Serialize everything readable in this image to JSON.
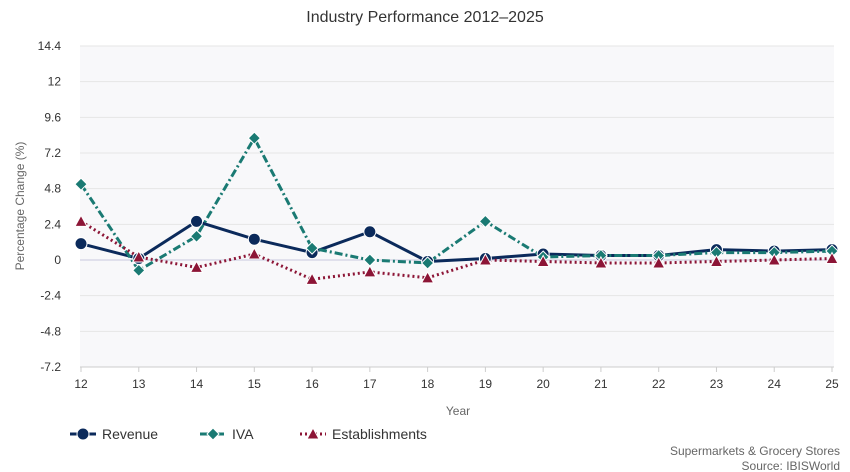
{
  "chart_data": {
    "type": "line",
    "title": "Industry Performance 2012–2025",
    "xlabel": "Year",
    "ylabel": "Percentage Change (%)",
    "x": [
      "12",
      "13",
      "14",
      "15",
      "16",
      "17",
      "18",
      "19",
      "20",
      "21",
      "22",
      "23",
      "24",
      "25"
    ],
    "yticks": [
      "14.4",
      "12",
      "9.6",
      "7.2",
      "4.8",
      "2.4",
      "0",
      "-2.4",
      "-4.8",
      "-7.2"
    ],
    "ylim": [
      -7.2,
      14.4
    ],
    "grid": true,
    "legend_position": "bottom-left",
    "series": [
      {
        "name": "Revenue",
        "color": "#0b2a5b",
        "marker": "circle",
        "line": "solid",
        "values": [
          1.1,
          0.1,
          2.6,
          1.4,
          0.5,
          1.9,
          -0.1,
          0.1,
          0.4,
          0.3,
          0.3,
          0.7,
          0.6,
          0.7
        ]
      },
      {
        "name": "IVA",
        "color": "#1a7a73",
        "marker": "diamond",
        "line": "dashdot",
        "values": [
          5.1,
          -0.7,
          1.6,
          8.2,
          0.8,
          0.0,
          -0.2,
          2.6,
          0.2,
          0.3,
          0.3,
          0.5,
          0.5,
          0.6
        ]
      },
      {
        "name": "Establishments",
        "color": "#8c1536",
        "marker": "triangle",
        "line": "dotted",
        "values": [
          2.6,
          0.2,
          -0.5,
          0.4,
          -1.3,
          -0.8,
          -1.2,
          0.0,
          -0.1,
          -0.2,
          -0.2,
          -0.1,
          0.0,
          0.1
        ]
      }
    ],
    "source_lines": [
      "Supermarkets & Grocery Stores",
      "Source: IBISWorld"
    ]
  }
}
